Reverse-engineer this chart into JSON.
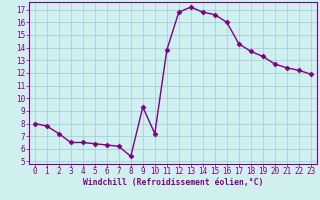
{
  "x": [
    0,
    1,
    2,
    3,
    4,
    5,
    6,
    7,
    8,
    9,
    10,
    11,
    12,
    13,
    14,
    15,
    16,
    17,
    18,
    19,
    20,
    21,
    22,
    23
  ],
  "y": [
    8.0,
    7.8,
    7.2,
    6.5,
    6.5,
    6.4,
    6.3,
    6.2,
    5.4,
    9.3,
    7.2,
    13.8,
    16.8,
    17.2,
    16.8,
    16.6,
    16.0,
    14.3,
    13.7,
    13.3,
    12.7,
    12.4,
    12.2,
    11.9
  ],
  "line_color": "#800080",
  "marker": "D",
  "marker_size": 2.5,
  "bg_color": "#d0f0f0",
  "grid_color": "#a0c8d8",
  "xlabel": "Windchill (Refroidissement éolien,°C)",
  "xlim": [
    -0.5,
    23.5
  ],
  "ylim": [
    4.8,
    17.6
  ],
  "yticks": [
    5,
    6,
    7,
    8,
    9,
    10,
    11,
    12,
    13,
    14,
    15,
    16,
    17
  ],
  "xticks": [
    0,
    1,
    2,
    3,
    4,
    5,
    6,
    7,
    8,
    9,
    10,
    11,
    12,
    13,
    14,
    15,
    16,
    17,
    18,
    19,
    20,
    21,
    22,
    23
  ],
  "label_color": "#800080",
  "tick_color": "#800080",
  "tick_fontsize": 5.5,
  "xlabel_fontsize": 5.8,
  "linewidth": 1.0,
  "spine_color": "#800080",
  "spine_linewidth": 0.8
}
